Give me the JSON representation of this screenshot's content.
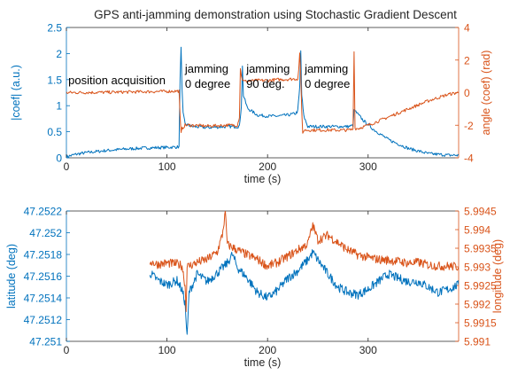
{
  "figure": {
    "title": "GPS anti-jamming demonstration using Stochastic Gradient Descent"
  },
  "colors": {
    "blue": "#0072BD",
    "orange": "#D95319",
    "axis": "#262626",
    "background": "#ffffff"
  },
  "chart_data": [
    {
      "type": "line",
      "title": "GPS anti-jamming demonstration using Stochastic Gradient Descent",
      "xlabel": "time (s)",
      "ylabel_left": "|coef| (a.u.)",
      "ylabel_right": "angle (coef) (rad)",
      "xlim": [
        0,
        390
      ],
      "ylim_left": [
        0,
        2.5
      ],
      "ylim_right": [
        -4,
        4
      ],
      "xticks": [
        "0",
        "100",
        "200",
        "300"
      ],
      "yticks_left": [
        "0",
        "0.5",
        "1",
        "1.5",
        "2",
        "2.5"
      ],
      "yticks_right": [
        "-4",
        "-2",
        "0",
        "2",
        "4"
      ],
      "grid": false,
      "legend": "none",
      "annotations": [
        {
          "line1": "position acquisition",
          "line2": "",
          "x": 1,
          "y_left": 1.41
        },
        {
          "line1": "jamming",
          "line2": "0 degree",
          "x": 117,
          "y_left": 1.63
        },
        {
          "line1": "jamming",
          "line2": " 90 deg.",
          "x": 178,
          "y_left": 1.63
        },
        {
          "line1": "jamming",
          "line2": "0 degree",
          "x": 236,
          "y_left": 1.63
        }
      ],
      "series": [
        {
          "axis": "left",
          "color": "#0072BD",
          "points": [
            [
              0,
              0.02
            ],
            [
              10,
              0.07
            ],
            [
              20,
              0.1
            ],
            [
              40,
              0.14
            ],
            [
              60,
              0.17
            ],
            [
              80,
              0.19
            ],
            [
              100,
              0.2
            ],
            [
              112,
              0.21
            ],
            [
              113,
              1.5
            ],
            [
              114,
              2.15
            ],
            [
              115,
              1.3
            ],
            [
              116,
              0.85
            ],
            [
              118,
              0.65
            ],
            [
              125,
              0.6
            ],
            [
              140,
              0.58
            ],
            [
              160,
              0.6
            ],
            [
              170,
              0.6
            ],
            [
              172,
              0.6
            ],
            [
              174,
              1.0
            ],
            [
              175,
              1.75
            ],
            [
              176,
              1.2
            ],
            [
              180,
              0.95
            ],
            [
              190,
              0.82
            ],
            [
              200,
              0.8
            ],
            [
              210,
              0.8
            ],
            [
              220,
              0.82
            ],
            [
              228,
              0.85
            ],
            [
              230,
              0.9
            ],
            [
              232,
              1.35
            ],
            [
              233,
              2.05
            ],
            [
              234,
              1.2
            ],
            [
              236,
              0.8
            ],
            [
              240,
              0.6
            ],
            [
              260,
              0.6
            ],
            [
              280,
              0.6
            ],
            [
              285,
              0.62
            ],
            [
              286,
              0.9
            ],
            [
              287,
              0.9
            ],
            [
              295,
              0.72
            ],
            [
              305,
              0.55
            ],
            [
              320,
              0.35
            ],
            [
              340,
              0.18
            ],
            [
              360,
              0.08
            ],
            [
              380,
              0.05
            ],
            [
              390,
              0.05
            ]
          ]
        },
        {
          "axis": "right",
          "color": "#D95319",
          "points": [
            [
              0,
              0
            ],
            [
              20,
              0.01
            ],
            [
              40,
              0.02
            ],
            [
              60,
              0.04
            ],
            [
              80,
              0.06
            ],
            [
              100,
              0.08
            ],
            [
              112,
              0.1
            ],
            [
              113,
              -1.5
            ],
            [
              114,
              -2.5
            ],
            [
              115,
              -2.2
            ],
            [
              118,
              -2.0
            ],
            [
              125,
              -2.0
            ],
            [
              140,
              -2.05
            ],
            [
              160,
              -2.0
            ],
            [
              170,
              -2.0
            ],
            [
              172,
              -1.5
            ],
            [
              173,
              1.5
            ],
            [
              174,
              1.0
            ],
            [
              176,
              0.7
            ],
            [
              180,
              0.7
            ],
            [
              190,
              0.75
            ],
            [
              200,
              0.75
            ],
            [
              210,
              0.8
            ],
            [
              220,
              0.82
            ],
            [
              230,
              0.85
            ],
            [
              231,
              1.4
            ],
            [
              232,
              2.5
            ],
            [
              233,
              1.0
            ],
            [
              234,
              -1.2
            ],
            [
              235,
              -2.5
            ],
            [
              236,
              -2.3
            ],
            [
              240,
              -2.3
            ],
            [
              260,
              -2.3
            ],
            [
              280,
              -2.3
            ],
            [
              285,
              -2.25
            ],
            [
              286,
              2.6
            ],
            [
              287,
              -2.2
            ],
            [
              290,
              -2.2
            ],
            [
              300,
              -2.0
            ],
            [
              320,
              -1.5
            ],
            [
              340,
              -1.0
            ],
            [
              360,
              -0.5
            ],
            [
              380,
              -0.1
            ],
            [
              390,
              0.0
            ]
          ]
        }
      ]
    },
    {
      "type": "line",
      "title": "",
      "xlabel": "time (s)",
      "ylabel_left": "latitude (deg)",
      "ylabel_right": "longitude (deg)",
      "xlim": [
        0,
        390
      ],
      "ylim_left": [
        47.251,
        47.2522
      ],
      "ylim_right": [
        5.991,
        5.9945
      ],
      "xticks": [
        "0",
        "100",
        "200",
        "300"
      ],
      "yticks_left": [
        "47.251",
        "47.2512",
        "47.2514",
        "47.2516",
        "47.2518",
        "47.252",
        "47.2522"
      ],
      "yticks_right": [
        "5.991",
        "5.9915",
        "5.992",
        "5.9925",
        "5.993",
        "5.9935",
        "5.994",
        "5.9945"
      ],
      "grid": false,
      "legend": "none",
      "series": [
        {
          "axis": "left",
          "color": "#0072BD",
          "points": [
            [
              83,
              47.25163
            ],
            [
              90,
              47.25157
            ],
            [
              100,
              47.25152
            ],
            [
              110,
              47.25156
            ],
            [
              115,
              47.25147
            ],
            [
              118,
              47.25135
            ],
            [
              120,
              47.25103
            ],
            [
              122,
              47.25145
            ],
            [
              130,
              47.25162
            ],
            [
              140,
              47.25155
            ],
            [
              150,
              47.25163
            ],
            [
              160,
              47.25172
            ],
            [
              165,
              47.2518
            ],
            [
              170,
              47.25168
            ],
            [
              180,
              47.25158
            ],
            [
              190,
              47.25145
            ],
            [
              200,
              47.2514
            ],
            [
              210,
              47.25147
            ],
            [
              220,
              47.25158
            ],
            [
              230,
              47.25165
            ],
            [
              240,
              47.25175
            ],
            [
              245,
              47.25182
            ],
            [
              250,
              47.25175
            ],
            [
              260,
              47.25162
            ],
            [
              270,
              47.2515
            ],
            [
              280,
              47.25145
            ],
            [
              290,
              47.25143
            ],
            [
              300,
              47.25148
            ],
            [
              310,
              47.25155
            ],
            [
              320,
              47.25162
            ],
            [
              330,
              47.25158
            ],
            [
              340,
              47.25155
            ],
            [
              350,
              47.25155
            ],
            [
              360,
              47.2515
            ],
            [
              370,
              47.25145
            ],
            [
              380,
              47.25148
            ],
            [
              390,
              47.25152
            ]
          ]
        },
        {
          "axis": "right",
          "color": "#D95319",
          "points": [
            [
              83,
              5.99315
            ],
            [
              90,
              5.99307
            ],
            [
              100,
              5.9931
            ],
            [
              110,
              5.99308
            ],
            [
              115,
              5.99303
            ],
            [
              118,
              5.9925
            ],
            [
              119,
              5.99185
            ],
            [
              120,
              5.993
            ],
            [
              130,
              5.99312
            ],
            [
              140,
              5.9932
            ],
            [
              150,
              5.9934
            ],
            [
              155,
              5.99385
            ],
            [
              158,
              5.99445
            ],
            [
              160,
              5.9936
            ],
            [
              170,
              5.99345
            ],
            [
              180,
              5.99332
            ],
            [
              190,
              5.9932
            ],
            [
              200,
              5.99302
            ],
            [
              210,
              5.99312
            ],
            [
              220,
              5.99328
            ],
            [
              230,
              5.99345
            ],
            [
              240,
              5.99362
            ],
            [
              245,
              5.99412
            ],
            [
              250,
              5.99372
            ],
            [
              260,
              5.99385
            ],
            [
              270,
              5.99365
            ],
            [
              280,
              5.99345
            ],
            [
              290,
              5.99332
            ],
            [
              300,
              5.99325
            ],
            [
              310,
              5.9932
            ],
            [
              320,
              5.99318
            ],
            [
              330,
              5.99315
            ],
            [
              340,
              5.9931
            ],
            [
              350,
              5.99312
            ],
            [
              360,
              5.99305
            ],
            [
              370,
              5.99302
            ],
            [
              380,
              5.99302
            ],
            [
              390,
              5.993
            ]
          ]
        }
      ]
    }
  ]
}
